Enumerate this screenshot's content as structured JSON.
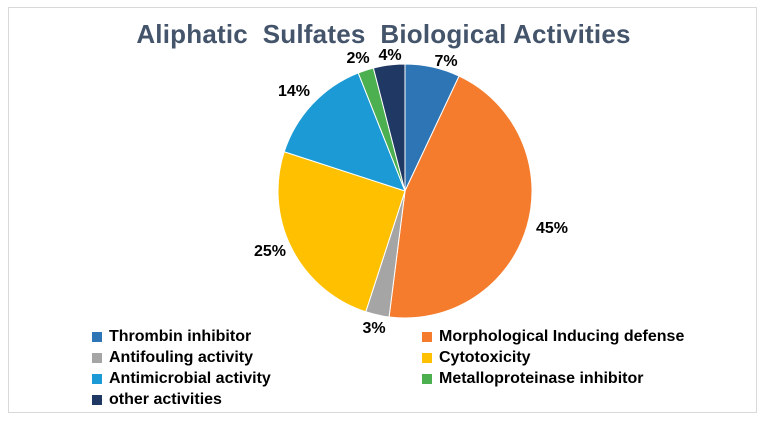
{
  "chart_data": {
    "type": "pie",
    "title": "Aliphatic  Sulfates  Biological Activities",
    "slices": [
      {
        "name": "Thrombin inhibitor",
        "value": 7,
        "label": "7%",
        "color": "#2e75b6"
      },
      {
        "name": "Morphological Inducing defense",
        "value": 45,
        "label": "45%",
        "color": "#f47c2c"
      },
      {
        "name": "Antifouling activity",
        "value": 3,
        "label": "3%",
        "color": "#a5a5a5"
      },
      {
        "name": "Cytotoxicity",
        "value": 25,
        "label": "25%",
        "color": "#ffc000"
      },
      {
        "name": "Antimicrobial activity",
        "value": 14,
        "label": "14%",
        "color": "#1c9ad6"
      },
      {
        "name": "Metalloproteinase inhibitor",
        "value": 2,
        "label": "2%",
        "color": "#4caf50"
      },
      {
        "name": "other activities",
        "value": 4,
        "label": "4%",
        "color": "#1f3864"
      }
    ],
    "legend_position": "bottom"
  }
}
